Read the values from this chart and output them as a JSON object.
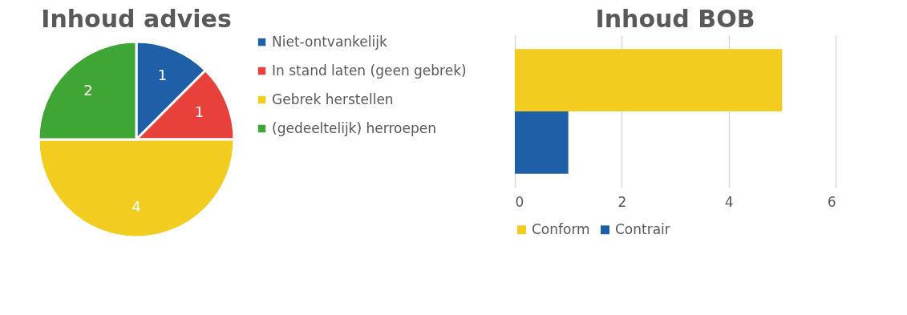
{
  "chart_data": [
    {
      "type": "pie",
      "title": "Inhoud advies",
      "categories": [
        "Niet-ontvankelijk",
        "In stand laten (geen gebrek)",
        "Gebrek herstellen",
        "(gedeeltelijk) herroepen"
      ],
      "values": [
        1,
        1,
        4,
        2
      ],
      "colors": [
        "#1f5fa8",
        "#e8403a",
        "#f2cc1e",
        "#3fa535"
      ],
      "data_labels": true,
      "legend": "right"
    },
    {
      "type": "bar",
      "title": "Inhoud BOB",
      "orientation": "horizontal",
      "categories": [
        null
      ],
      "series": [
        {
          "name": "Conform",
          "color": "#f2cc1e",
          "values": [
            5
          ]
        },
        {
          "name": "Contrair",
          "color": "#1f5fa8",
          "values": [
            1
          ]
        }
      ],
      "xlim": [
        0,
        6
      ],
      "xticks": [
        0,
        2,
        4,
        6
      ],
      "grid": "x",
      "legend": "bottom",
      "tick_labels": "x"
    }
  ]
}
